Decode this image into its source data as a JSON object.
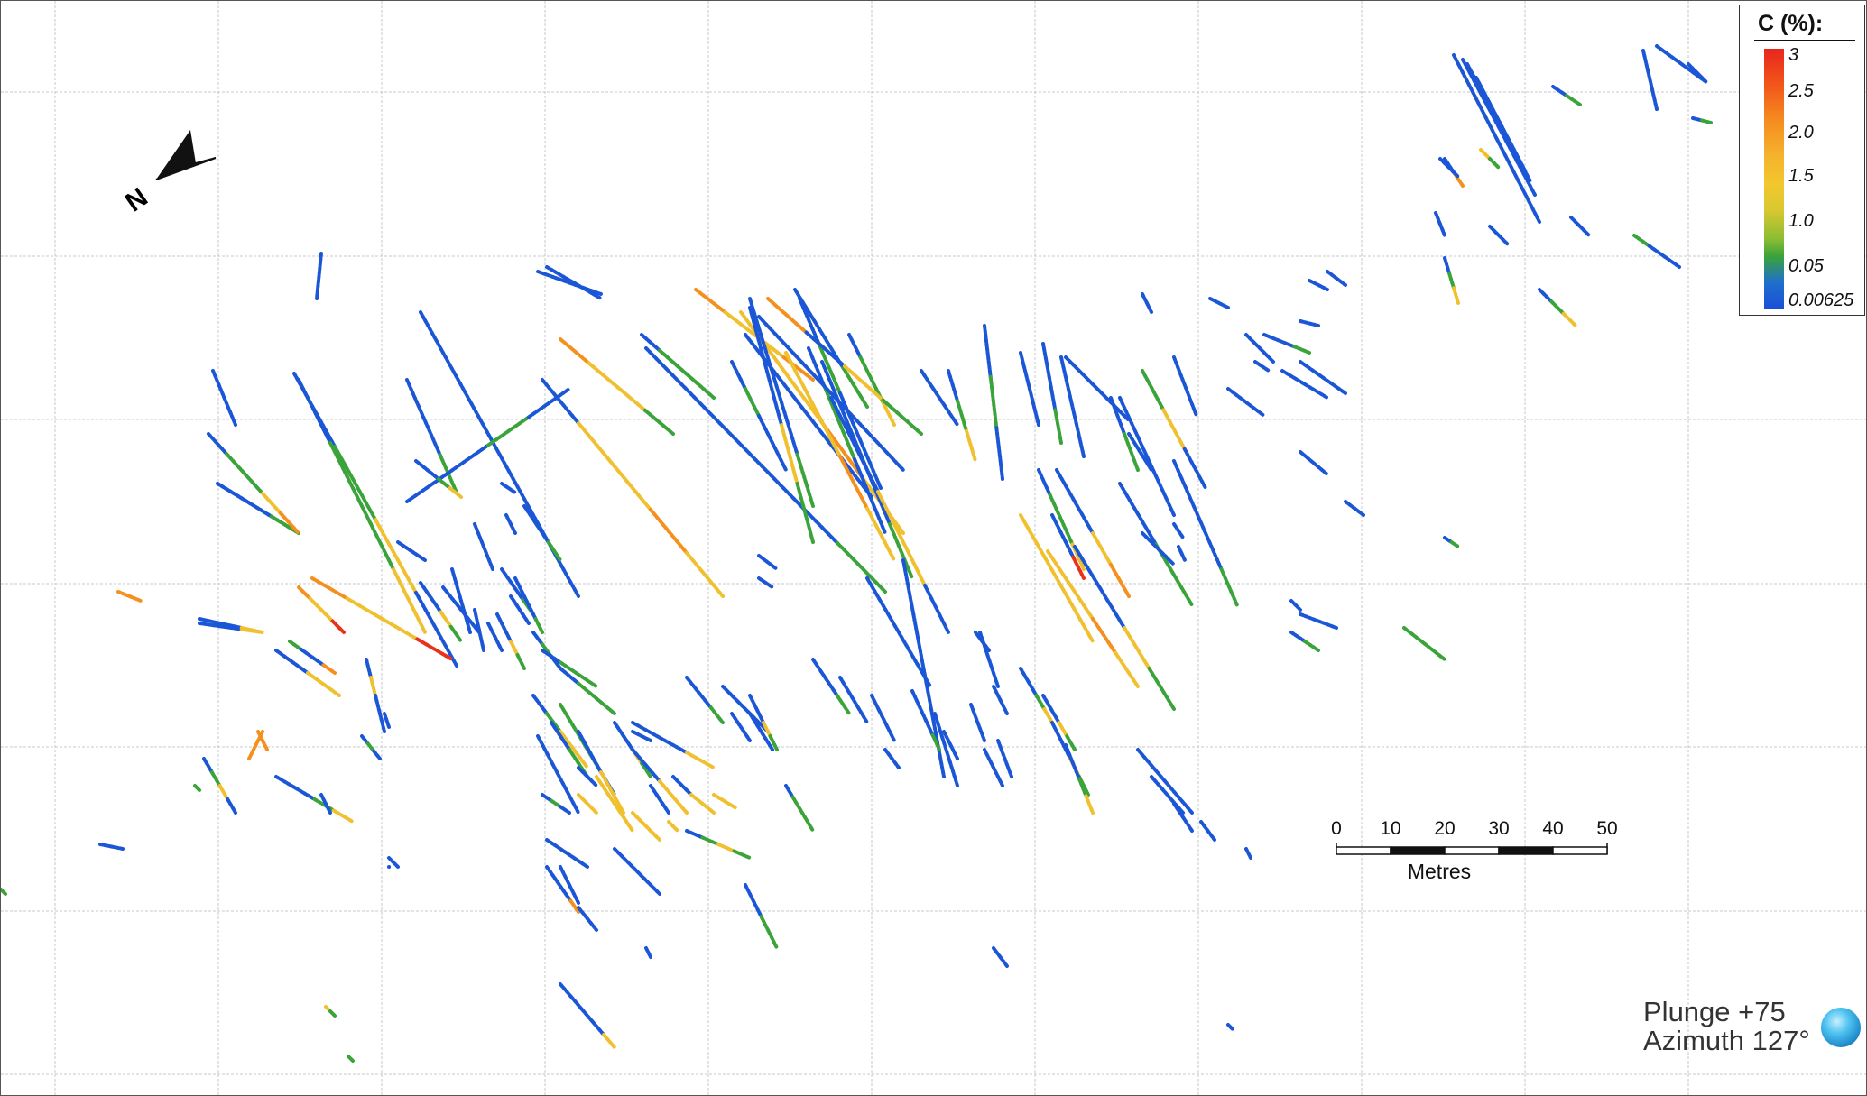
{
  "legend": {
    "title": "C (%):",
    "ticks": [
      "3",
      "2.5",
      "2.0",
      "1.5",
      "1.0",
      "0.05",
      "0.00625"
    ],
    "gradient_colors": [
      "#e8261c",
      "#f58a20",
      "#f2c72e",
      "#3aa33a",
      "#1a4fd8"
    ]
  },
  "scale_bar": {
    "labels": [
      "0",
      "10",
      "20",
      "30",
      "40",
      "50"
    ],
    "units": "Metres"
  },
  "north_arrow": {
    "label": "N",
    "icon": "north-arrow-icon"
  },
  "view": {
    "plunge": "Plunge +75",
    "azimuth": "Azimuth 127°",
    "icon": "globe-orientation-icon"
  },
  "palette": {
    "blue": "#1a56d6",
    "green": "#3aa33a",
    "yellow": "#f0c02e",
    "orange": "#f5901f",
    "red": "#e8321c",
    "grid": "#c8c8c8"
  }
}
